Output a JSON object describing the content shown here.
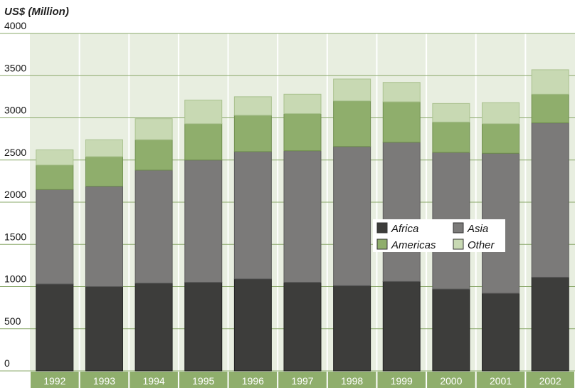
{
  "chart_data": {
    "type": "bar",
    "stacked": true,
    "ylabel": "US$ (Million)",
    "ylim": [
      0,
      4000
    ],
    "yticks": [
      0,
      500,
      1000,
      1500,
      2000,
      2500,
      3000,
      3500,
      4000
    ],
    "grid": true,
    "legend_position": "center-right",
    "categories": [
      "1992",
      "1993",
      "1994",
      "1995",
      "1996",
      "1997",
      "1998",
      "1999",
      "2000",
      "2001",
      "2002"
    ],
    "series": [
      {
        "name": "Africa",
        "color": "#3d3d3b",
        "values": [
          1030,
          1000,
          1040,
          1050,
          1090,
          1050,
          1010,
          1060,
          970,
          920,
          1110
        ]
      },
      {
        "name": "Asia",
        "color": "#7b7a79",
        "values": [
          1120,
          1190,
          1340,
          1450,
          1510,
          1560,
          1650,
          1650,
          1620,
          1660,
          1830
        ]
      },
      {
        "name": "Americas",
        "color": "#8fae6c",
        "values": [
          290,
          350,
          360,
          430,
          430,
          440,
          540,
          480,
          360,
          350,
          340
        ]
      },
      {
        "name": "Other",
        "color": "#c8d9b3",
        "values": [
          180,
          200,
          250,
          280,
          220,
          230,
          260,
          230,
          220,
          250,
          290
        ]
      }
    ],
    "colors": {
      "plot_background": "#e8eee0",
      "gridline": "#8aa86a",
      "axis_band": "#8fae6c"
    }
  }
}
